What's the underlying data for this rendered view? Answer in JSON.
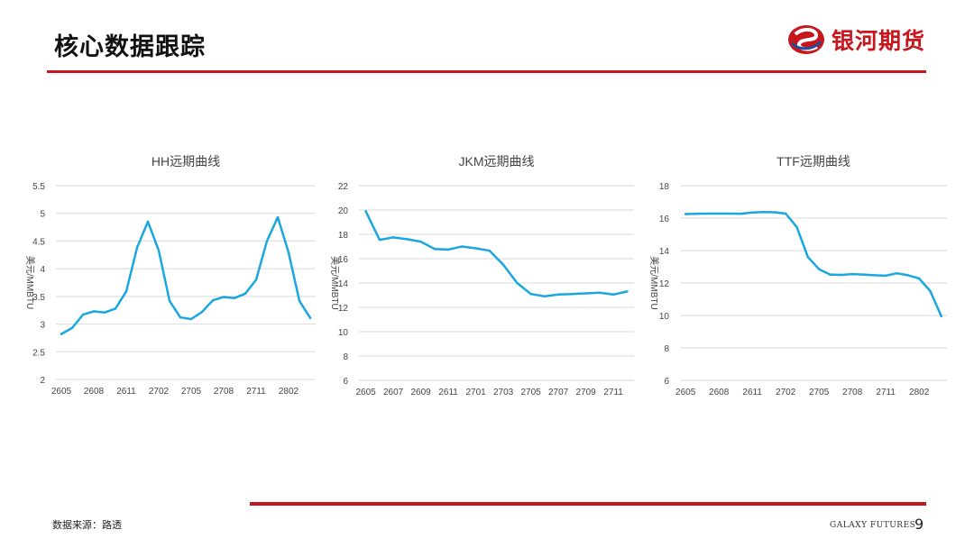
{
  "page": {
    "title": "核心数据跟踪",
    "brand": "银河期货",
    "source": "数据来源：路透",
    "footer_brand": "GALAXY FUTURES",
    "page_number": "9"
  },
  "colors": {
    "accent": "#c8161d",
    "series": "#1aa7e0",
    "grid": "#d9d9d9",
    "axis_text": "#444444"
  },
  "chart_data": [
    {
      "type": "line",
      "title": "HH远期曲线",
      "ylabel": "美元/MMBTU",
      "ylim": [
        2,
        5.5
      ],
      "yticks": [
        2,
        2.5,
        3,
        3.5,
        4,
        4.5,
        5,
        5.5
      ],
      "ytick_labels": [
        "2",
        "2.5",
        "3",
        "3.5",
        "4",
        "4.5",
        "5",
        "5.5"
      ],
      "x_tick_labels": [
        "2605",
        "2608",
        "2611",
        "2702",
        "2705",
        "2708",
        "2711",
        "2802"
      ],
      "x_tick_positions": [
        0,
        3,
        6,
        9,
        12,
        15,
        18,
        21
      ],
      "n_points": 24,
      "values": [
        2.82,
        2.93,
        3.17,
        3.23,
        3.21,
        3.28,
        3.59,
        4.38,
        4.85,
        4.33,
        3.42,
        3.12,
        3.09,
        3.22,
        3.43,
        3.49,
        3.47,
        3.55,
        3.8,
        4.5,
        4.93,
        4.29,
        3.42,
        3.11
      ]
    },
    {
      "type": "line",
      "title": "JKM远期曲线",
      "ylabel": "美元/MMBTU",
      "ylim": [
        6,
        22
      ],
      "yticks": [
        6,
        8,
        10,
        12,
        14,
        16,
        18,
        20,
        22
      ],
      "ytick_labels": [
        "6",
        "8",
        "10",
        "12",
        "14",
        "16",
        "18",
        "20",
        "22"
      ],
      "x_tick_labels": [
        "2605",
        "2607",
        "2609",
        "2611",
        "2701",
        "2703",
        "2705",
        "2707",
        "2709",
        "2711"
      ],
      "x_tick_positions": [
        0,
        2,
        4,
        6,
        8,
        10,
        12,
        14,
        16,
        18
      ],
      "n_points": 20,
      "values": [
        19.9,
        17.55,
        17.75,
        17.6,
        17.4,
        16.8,
        16.75,
        17.0,
        16.85,
        16.65,
        15.5,
        14.0,
        13.1,
        12.9,
        13.05,
        13.1,
        13.15,
        13.2,
        13.05,
        13.3
      ]
    },
    {
      "type": "line",
      "title": "TTF远期曲线",
      "ylabel": "美元/MMBTU",
      "ylim": [
        6,
        18
      ],
      "yticks": [
        6,
        8,
        10,
        12,
        14,
        16,
        18
      ],
      "ytick_labels": [
        "6",
        "8",
        "10",
        "12",
        "14",
        "16",
        "18"
      ],
      "x_tick_labels": [
        "2605",
        "2608",
        "2611",
        "2702",
        "2705",
        "2708",
        "2711",
        "2802"
      ],
      "x_tick_positions": [
        0,
        3,
        6,
        9,
        12,
        15,
        18,
        21
      ],
      "n_points": 24,
      "values": [
        16.25,
        16.27,
        16.28,
        16.28,
        16.28,
        16.27,
        16.35,
        16.38,
        16.36,
        16.28,
        15.45,
        13.6,
        12.85,
        12.52,
        12.5,
        12.55,
        12.52,
        12.48,
        12.45,
        12.6,
        12.48,
        12.28,
        11.5,
        9.95
      ]
    }
  ]
}
